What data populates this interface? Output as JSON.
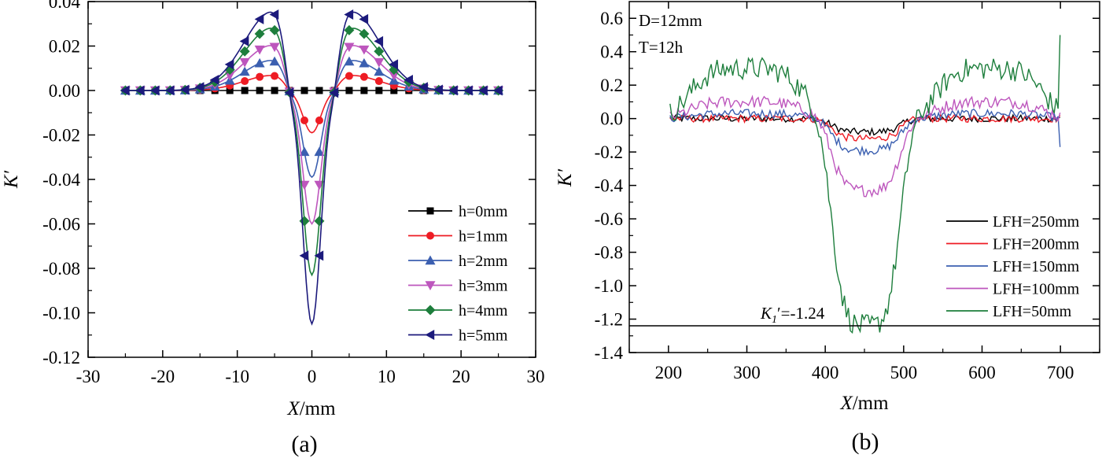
{
  "chart_data": [
    {
      "type": "line",
      "panel_label": "(a)",
      "xlabel_var": "X",
      "xlabel_unit": "/mm",
      "ylabel": "K′",
      "xlim": [
        -30,
        30
      ],
      "ylim": [
        -0.12,
        0.04
      ],
      "xticks": [
        -30,
        -20,
        -10,
        0,
        10,
        20,
        30
      ],
      "xtick_labels": [
        "-30",
        "-20",
        "-10",
        "0",
        "10",
        "20",
        "30"
      ],
      "yticks": [
        0.04,
        0.02,
        0.0,
        -0.02,
        -0.04,
        -0.06,
        -0.08,
        -0.1,
        -0.12
      ],
      "ytick_labels": [
        "0.04",
        "0.02",
        "0.00",
        "-0.02",
        "-0.04",
        "-0.06",
        "-0.08",
        "-0.10",
        "-0.12"
      ],
      "legend_position": "lower-right",
      "series": [
        {
          "name": "h=0mm",
          "color": "#000000",
          "marker": "square",
          "peak": 0.0,
          "dip": 0.0
        },
        {
          "name": "h=1mm",
          "color": "#ee1c24",
          "marker": "circle",
          "peak": 0.0065,
          "dip": -0.019
        },
        {
          "name": "h=2mm",
          "color": "#3b5fb0",
          "marker": "triangle-up",
          "peak": 0.013,
          "dip": -0.039
        },
        {
          "name": "h=3mm",
          "color": "#bd56bd",
          "marker": "triangle-down",
          "peak": 0.0195,
          "dip": -0.06
        },
        {
          "name": "h=4mm",
          "color": "#1d7e3c",
          "marker": "diamond",
          "peak": 0.027,
          "dip": -0.083
        },
        {
          "name": "h=5mm",
          "color": "#1c1a7c",
          "marker": "triangle-left",
          "peak": 0.034,
          "dip": -0.105
        }
      ]
    },
    {
      "type": "line",
      "panel_label": "(b)",
      "xlabel_var": "X",
      "xlabel_unit": "/mm",
      "ylabel": "K′",
      "xlim": [
        150,
        750
      ],
      "ylim": [
        -1.4,
        0.7
      ],
      "xticks": [
        200,
        300,
        400,
        500,
        600,
        700
      ],
      "xtick_labels": [
        "200",
        "300",
        "400",
        "500",
        "600",
        "700"
      ],
      "yticks": [
        0.6,
        0.4,
        0.2,
        0.0,
        -0.2,
        -0.4,
        -0.6,
        -0.8,
        -1.0,
        -1.2,
        -1.4
      ],
      "ytick_labels": [
        "0.6",
        "0.4",
        "0.2",
        "0.0",
        "-0.2",
        "-0.4",
        "-0.6",
        "-0.8",
        "-1.0",
        "-1.2",
        "-1.4"
      ],
      "annotations": [
        "D=12mm",
        "T=12h"
      ],
      "threshold": {
        "label_var": "K",
        "label_sub": "1",
        "label_rest": "′=-1.24",
        "value": -1.24
      },
      "legend_position": "lower-right",
      "series": [
        {
          "name": "LFH=250mm",
          "color": "#000000",
          "dip": -0.08,
          "edge": 0.0
        },
        {
          "name": "LFH=200mm",
          "color": "#ee1c24",
          "dip": -0.12,
          "edge": 0.0
        },
        {
          "name": "LFH=150mm",
          "color": "#3b5fb0",
          "dip": -0.19,
          "edge": 0.03
        },
        {
          "name": "LFH=100mm",
          "color": "#bd56bd",
          "dip": -0.43,
          "edge": 0.1
        },
        {
          "name": "LFH=50mm",
          "color": "#1d7e3c",
          "dip": -1.24,
          "edge": 0.3
        }
      ]
    }
  ]
}
